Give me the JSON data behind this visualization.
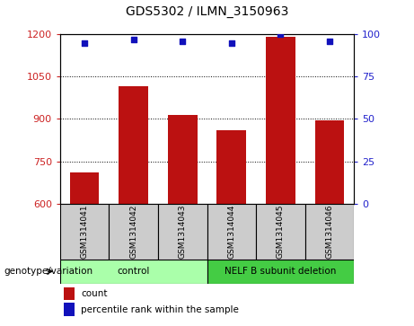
{
  "title": "GDS5302 / ILMN_3150963",
  "samples": [
    "GSM1314041",
    "GSM1314042",
    "GSM1314043",
    "GSM1314044",
    "GSM1314045",
    "GSM1314046"
  ],
  "counts": [
    710,
    1015,
    915,
    860,
    1190,
    895
  ],
  "percentiles": [
    95,
    97,
    96,
    95,
    100,
    96
  ],
  "ylim_left": [
    600,
    1200
  ],
  "ylim_right": [
    0,
    100
  ],
  "yticks_left": [
    600,
    750,
    900,
    1050,
    1200
  ],
  "yticks_right": [
    0,
    25,
    50,
    75,
    100
  ],
  "bar_color": "#bb1111",
  "dot_color": "#1111bb",
  "grid_color": "#000000",
  "groups": [
    {
      "label": "control",
      "samples": [
        0,
        1,
        2
      ],
      "color": "#aaffaa"
    },
    {
      "label": "NELF B subunit deletion",
      "samples": [
        3,
        4,
        5
      ],
      "color": "#44cc44"
    }
  ],
  "genotype_label": "genotype/variation",
  "legend_count_label": "count",
  "legend_percentile_label": "percentile rank within the sample",
  "sample_box_color": "#cccccc",
  "left_color": "#cc2222",
  "right_color": "#2222cc"
}
